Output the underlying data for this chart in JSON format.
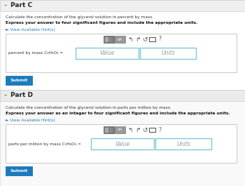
{
  "bg_outer": "#f2f2f2",
  "bg_section_c": "#ffffff",
  "bg_section_d": "#f9f9f9",
  "bg_header": "#efefef",
  "bg_header_d": "#ebebeb",
  "part_c_header": "Part C",
  "part_d_header": "Part D",
  "part_c_desc1": "Calculate the concentration of the glycerol solution in percent by mass.",
  "part_c_desc2": "Express your answer to four significant figures and include the appropriate units.",
  "part_d_desc1": "Calculate the concentration of the glycerol solution in parts per million by mass.",
  "part_d_desc2": "Express your answer as an integer to four significant figures and include the appropriate units.",
  "hint_text": "► View Available Hint(s)",
  "hint_color": "#2b7db5",
  "label_c": "percent by mass C₃H₈O₃ =",
  "label_d": "parts per million by mass C₃H₈O₃ =",
  "value_placeholder": "Value",
  "units_placeholder": "Units",
  "submit_text": "Submit",
  "submit_bg": "#1a7bbf",
  "submit_fg": "#ffffff",
  "input_border": "#7ec8d8",
  "toolbar_gray1": "#777777",
  "toolbar_gray2": "#999999",
  "icon_color": "#555555",
  "text_color": "#333333",
  "bold_color": "#111111",
  "arrow_bullet": "–",
  "panel_border": "#cccccc",
  "section_divider": "#dddddd"
}
